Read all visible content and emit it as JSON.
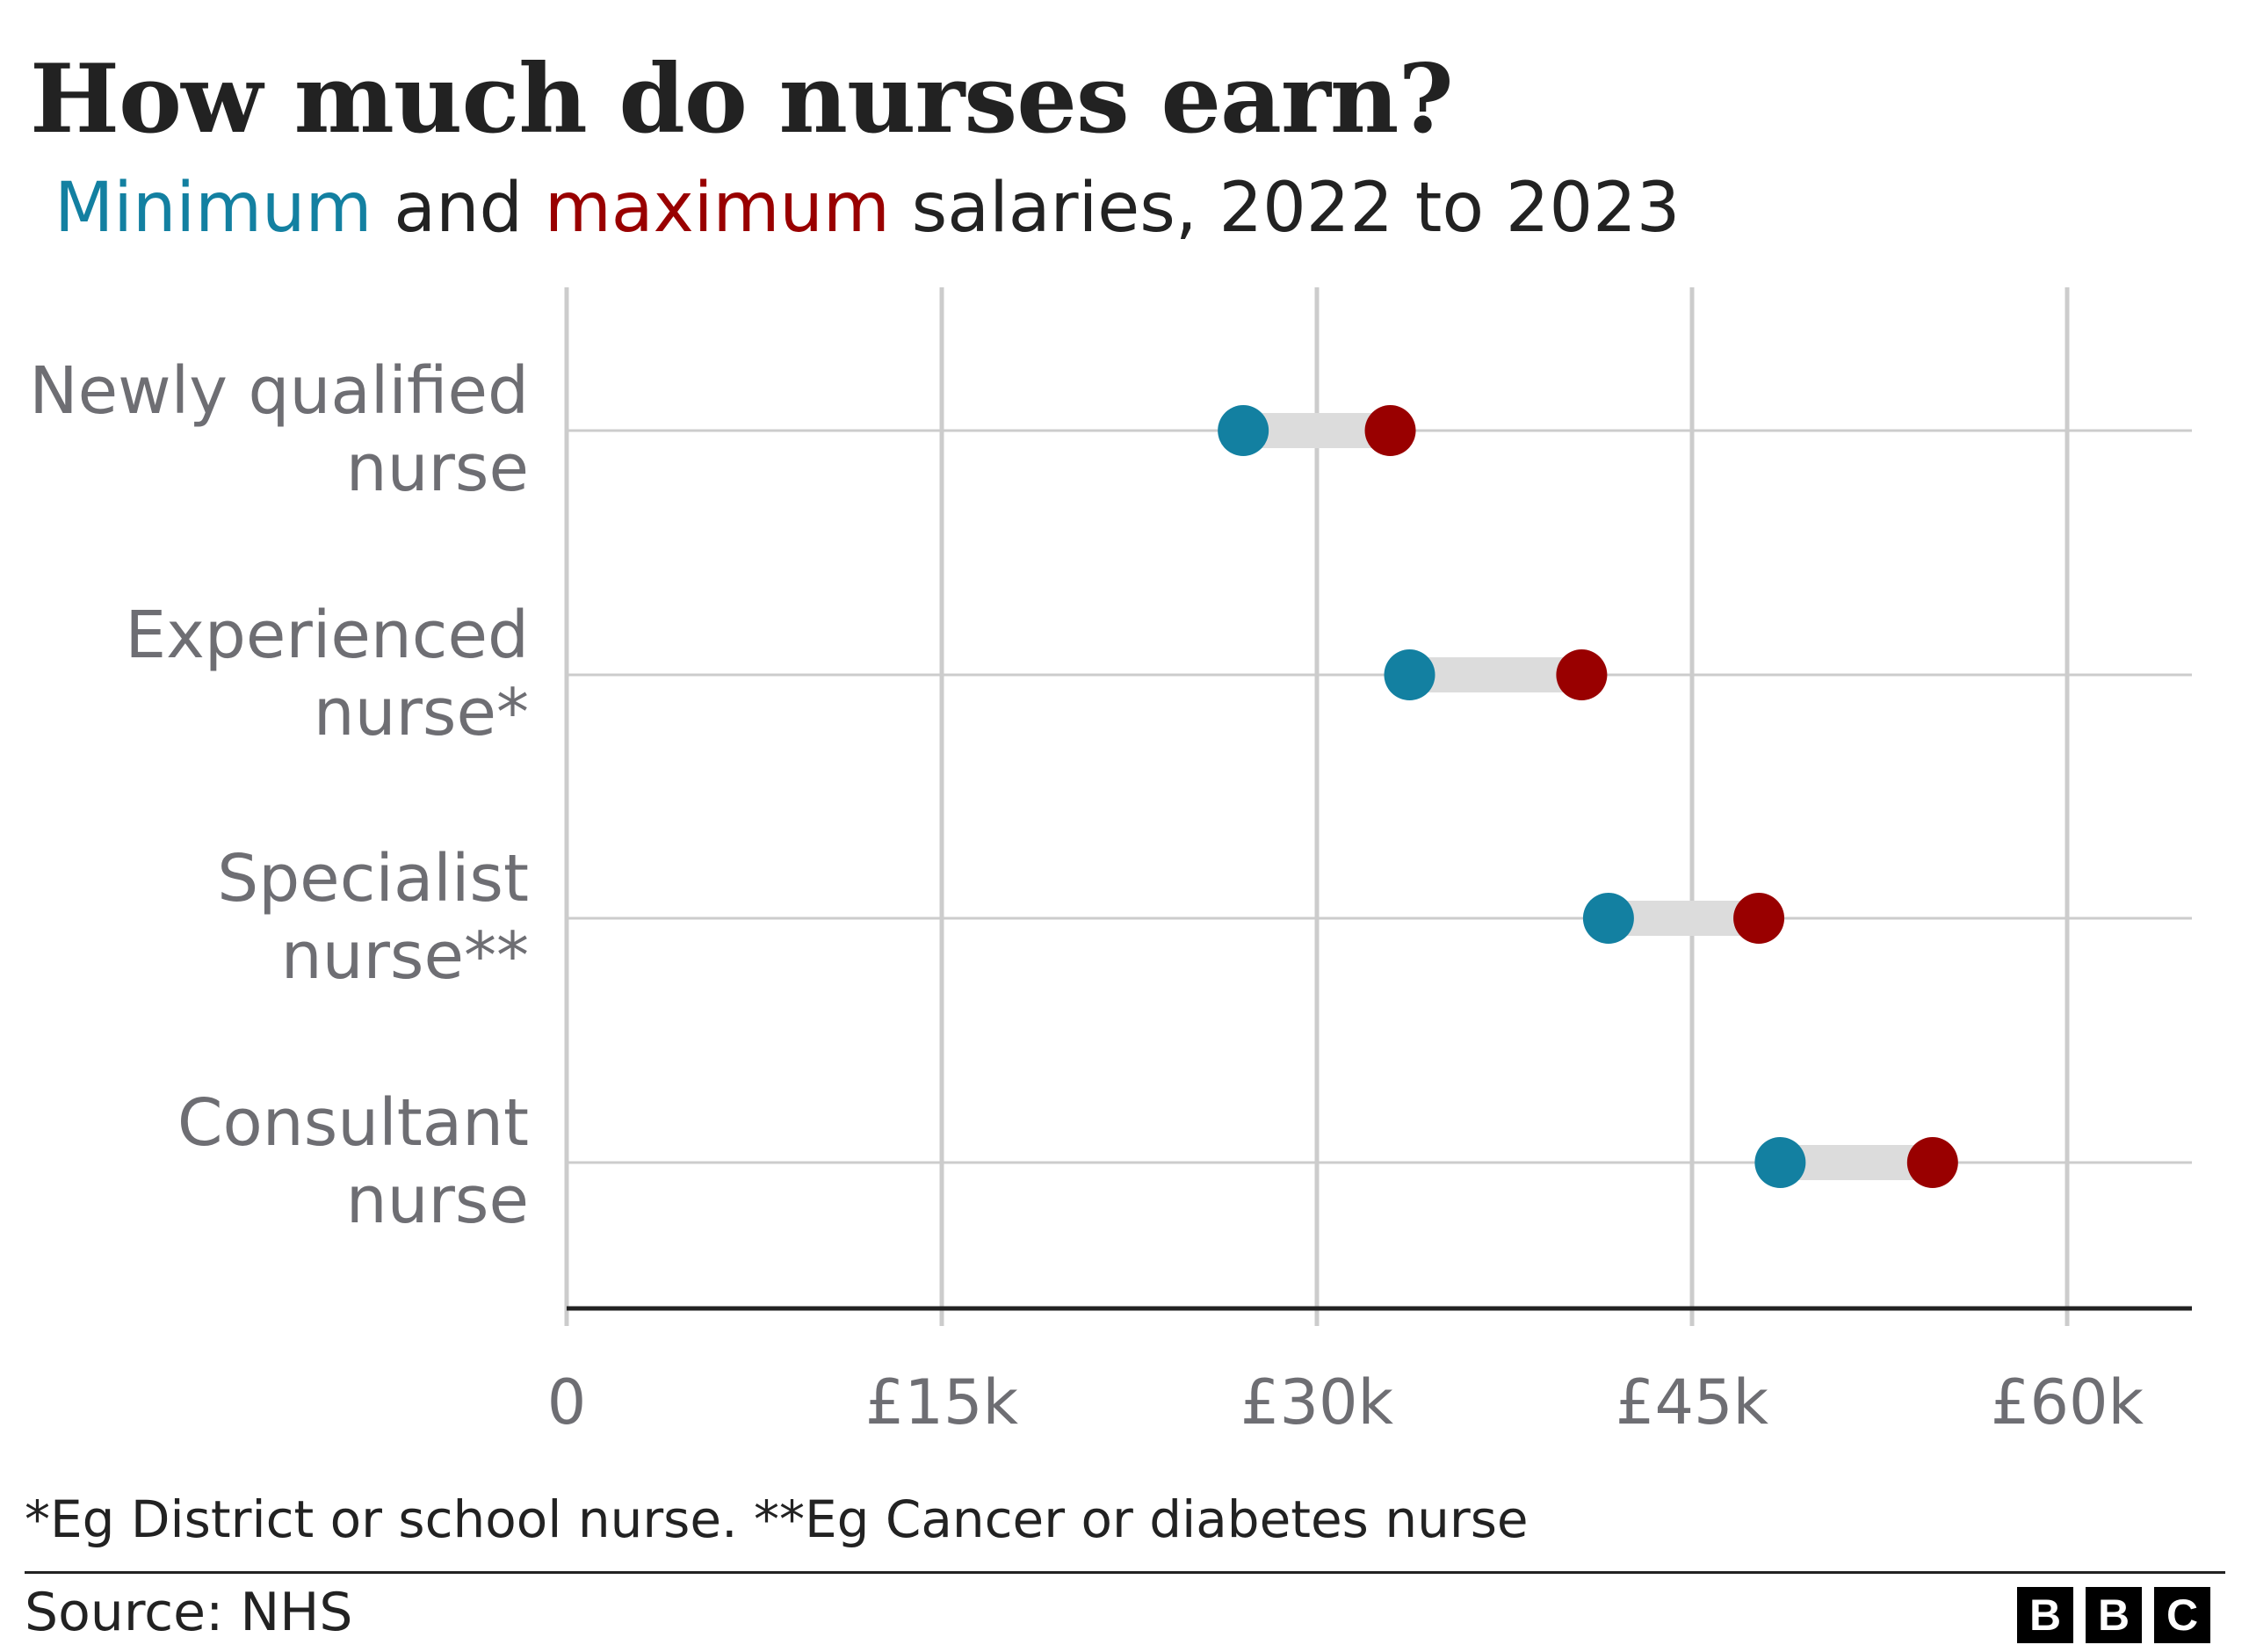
{
  "title": "How much do nurses earn?",
  "subtitle": {
    "min_word": "Minimum",
    "and": " and ",
    "max_word": "maximum",
    "rest": " salaries, 2022 to 2023"
  },
  "colors": {
    "min": "#1380A1",
    "max": "#990000",
    "range_bar": "#dcdcdc",
    "grid": "#cccccc"
  },
  "chart_data": {
    "type": "dumbbell",
    "categories": [
      [
        "Newly qualified",
        "nurse"
      ],
      [
        "Experienced",
        "nurse*"
      ],
      [
        "Specialist",
        "nurse**"
      ],
      [
        "Consultant",
        "nurse"
      ]
    ],
    "series": [
      {
        "name": "Minimum",
        "values": [
          27055,
          33706,
          41659,
          48526
        ]
      },
      {
        "name": "Maximum",
        "values": [
          32934,
          40588,
          47672,
          54619
        ]
      }
    ],
    "xlim": [
      0,
      65000
    ],
    "xticks": [
      0,
      15000,
      30000,
      45000,
      60000
    ],
    "xtick_labels": [
      "0",
      "£15k",
      "£30k",
      "£45k",
      "£60k"
    ],
    "grid": true
  },
  "footnote": "*Eg District or school nurse. **Eg Cancer or diabetes nurse",
  "source": "Source: NHS",
  "logo": [
    "B",
    "B",
    "C"
  ]
}
